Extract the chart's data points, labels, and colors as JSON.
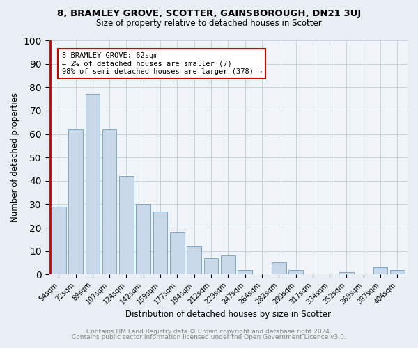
{
  "title": "8, BRAMLEY GROVE, SCOTTER, GAINSBOROUGH, DN21 3UJ",
  "subtitle": "Size of property relative to detached houses in Scotter",
  "xlabel": "Distribution of detached houses by size in Scotter",
  "ylabel": "Number of detached properties",
  "footer1": "Contains HM Land Registry data © Crown copyright and database right 2024.",
  "footer2": "Contains public sector information licensed under the Open Government Licence v3.0.",
  "categories": [
    "54sqm",
    "72sqm",
    "89sqm",
    "107sqm",
    "124sqm",
    "142sqm",
    "159sqm",
    "177sqm",
    "194sqm",
    "212sqm",
    "229sqm",
    "247sqm",
    "264sqm",
    "282sqm",
    "299sqm",
    "317sqm",
    "334sqm",
    "352sqm",
    "369sqm",
    "387sqm",
    "404sqm"
  ],
  "values": [
    29,
    62,
    77,
    62,
    42,
    30,
    27,
    18,
    12,
    7,
    8,
    2,
    0,
    5,
    2,
    0,
    0,
    1,
    0,
    3,
    2
  ],
  "bar_color": "#c8d8e8",
  "bar_edge_color": "#7aaac8",
  "annotation_title": "8 BRAMLEY GROVE: 62sqm",
  "annotation_line1": "← 2% of detached houses are smaller (7)",
  "annotation_line2": "98% of semi-detached houses are larger (378) →",
  "annotation_box_edge_color": "#cc0000",
  "annotation_box_bg": "#ffffff",
  "red_line_color": "#cc0000",
  "ylim": [
    0,
    100
  ],
  "background_color": "#e8eef4",
  "plot_bg_color": "#f0f4f8",
  "grid_color": "#c0ccd8",
  "title_fontsize": 9.5,
  "subtitle_fontsize": 8.5,
  "tick_fontsize": 7,
  "axis_label_fontsize": 8.5,
  "footer_fontsize": 6.5,
  "footer_color": "#888888"
}
